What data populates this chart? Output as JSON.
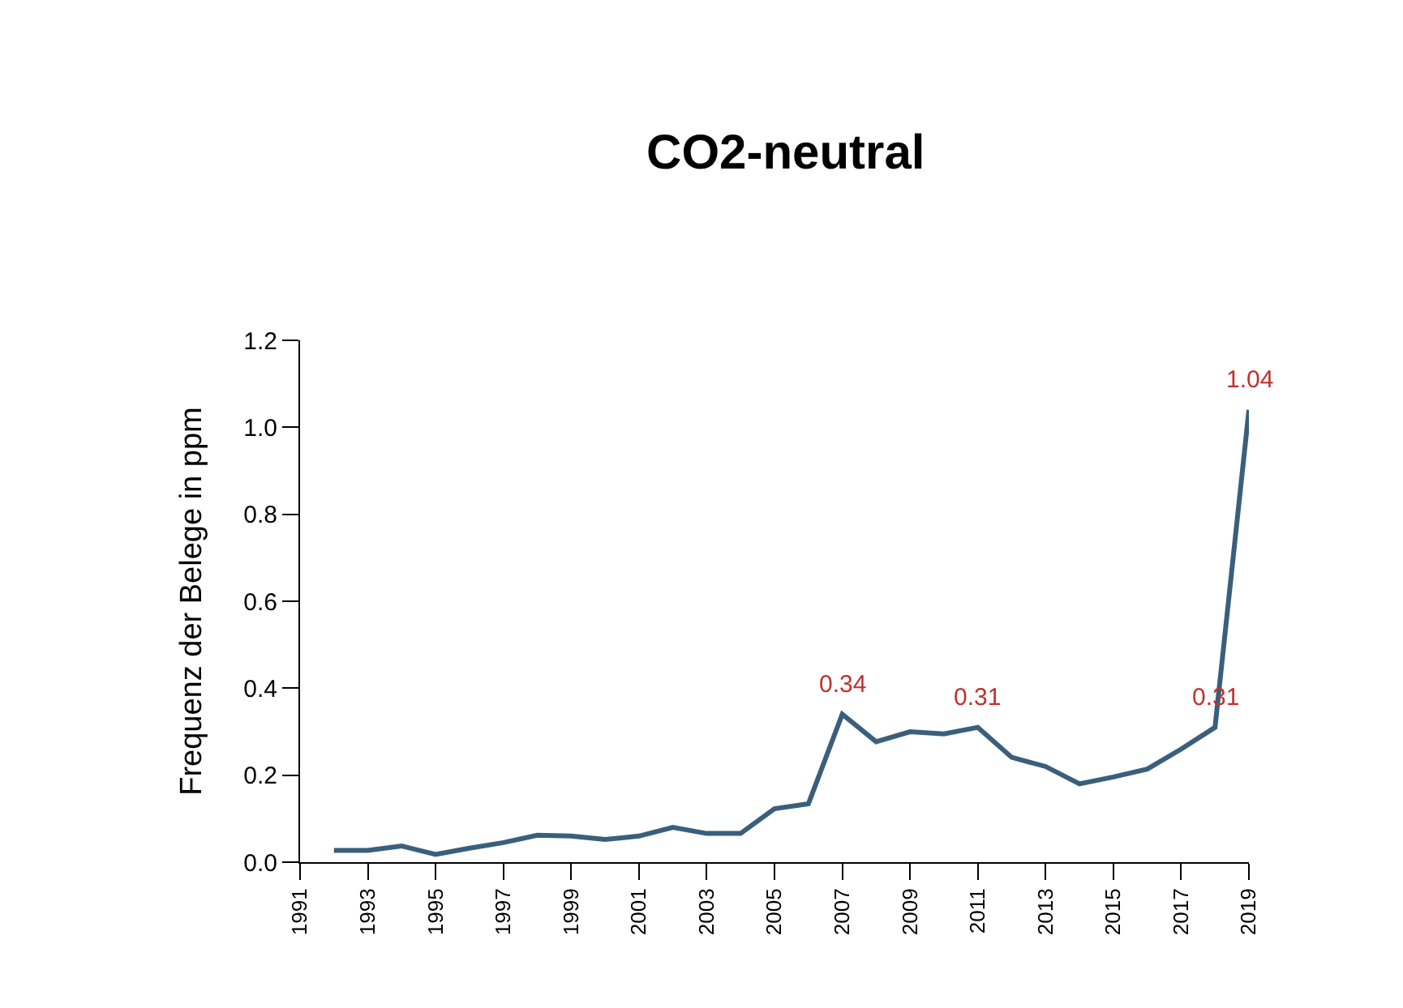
{
  "chart_data": {
    "type": "line",
    "title": "CO2-neutral",
    "ylabel": "Frequenz der Belege in ppm",
    "x": [
      1992,
      1993,
      1994,
      1995,
      1996,
      1997,
      1998,
      1999,
      2000,
      2001,
      2002,
      2003,
      2004,
      2005,
      2006,
      2007,
      2008,
      2009,
      2010,
      2011,
      2012,
      2013,
      2014,
      2015,
      2016,
      2017,
      2018,
      2019
    ],
    "series": [
      {
        "color": "#3a5f7d",
        "values": [
          0.027,
          0.027,
          0.037,
          0.018,
          0.032,
          0.045,
          0.062,
          0.06,
          0.052,
          0.06,
          0.08,
          0.066,
          0.066,
          0.123,
          0.134,
          0.34,
          0.277,
          0.3,
          0.295,
          0.31,
          0.241,
          0.22,
          0.18,
          0.196,
          0.214,
          0.26,
          0.31,
          1.04
        ]
      }
    ],
    "annotations": [
      {
        "text": "0.34",
        "x": 2007,
        "y": 0.34
      },
      {
        "text": "0.31",
        "x": 2011,
        "y": 0.31
      },
      {
        "text": "0.31",
        "x": 2018,
        "y": 0.31
      },
      {
        "text": "1.04",
        "x": 2019,
        "y": 1.04
      }
    ],
    "xlim": [
      1991,
      2019
    ],
    "xticks": [
      1991,
      1993,
      1995,
      1997,
      1999,
      2001,
      2003,
      2005,
      2007,
      2009,
      2011,
      2013,
      2015,
      2017,
      2019
    ],
    "ylim": [
      0,
      1.2
    ],
    "yticks": [
      {
        "value": 0,
        "label": "0.0"
      },
      0.2,
      0.4,
      0.6,
      0.8,
      {
        "value": 1,
        "label": "1.0"
      },
      1.2
    ],
    "marker": "none",
    "line_style": "solid"
  }
}
